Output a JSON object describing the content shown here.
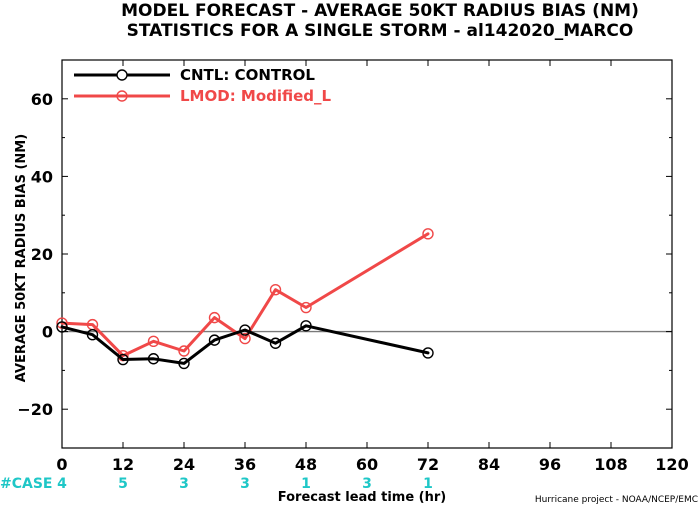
{
  "chart_data": {
    "type": "line",
    "title_line1": "MODEL FORECAST - AVERAGE 50KT RADIUS BIAS (NM)",
    "title_line2": "STATISTICS FOR A SINGLE STORM - al142020_MARCO",
    "xlabel": "Forecast lead time (hr)",
    "ylabel": "AVERAGE 50KT RADIUS BIAS (NM)",
    "xlim": [
      0,
      120
    ],
    "ylim": [
      -30,
      70
    ],
    "xticks": [
      0,
      12,
      24,
      36,
      48,
      60,
      72,
      84,
      96,
      108,
      120
    ],
    "yticks": [
      -20,
      0,
      20,
      40,
      60
    ],
    "ytick_labels": [
      "−20",
      "0",
      "20",
      "40",
      "60"
    ],
    "zero_line": true,
    "legend_position": "top-left",
    "series": [
      {
        "name": "CNTL: CONTROL",
        "color": "#000000",
        "x": [
          0,
          6,
          12,
          18,
          24,
          30,
          36,
          42,
          48,
          72
        ],
        "y": [
          1.2,
          -0.8,
          -7.2,
          -7.0,
          -8.2,
          -2.2,
          0.4,
          -3.0,
          1.5,
          -5.5
        ]
      },
      {
        "name": "LMOD: Modified_L",
        "color": "#f04848",
        "x": [
          0,
          6,
          12,
          18,
          24,
          30,
          36,
          42,
          48,
          72
        ],
        "y": [
          2.2,
          1.8,
          -6.2,
          -2.5,
          -5.0,
          3.6,
          -1.8,
          10.8,
          6.2,
          25.2
        ]
      }
    ],
    "case_label": "#CASE",
    "case_counts": [
      {
        "x": 0,
        "label": "4"
      },
      {
        "x": 12,
        "label": "5"
      },
      {
        "x": 24,
        "label": "3"
      },
      {
        "x": 36,
        "label": "3"
      },
      {
        "x": 48,
        "label": "1"
      },
      {
        "x": 60,
        "label": "3"
      },
      {
        "x": 72,
        "label": "1"
      }
    ],
    "credit": "Hurricane project - NOAA/NCEP/EMC"
  }
}
